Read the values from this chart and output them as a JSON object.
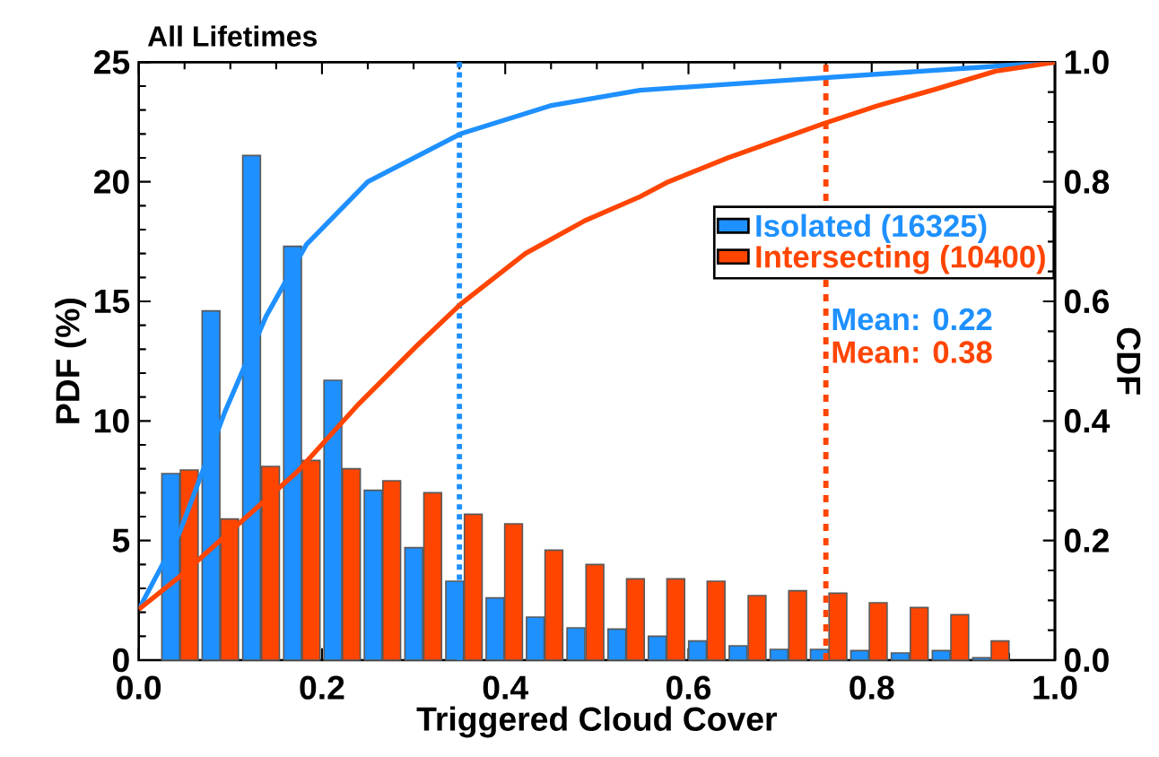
{
  "chart_data": {
    "type": "histogram",
    "title": "All Lifetimes",
    "xlabel": "Triggered Cloud Cover",
    "ylabel": "PDF (%)",
    "y2label": "CDF",
    "bins": [
      0.023,
      0.067,
      0.111,
      0.156,
      0.2,
      0.244,
      0.288,
      0.333,
      0.377,
      0.421,
      0.465,
      0.51,
      0.554,
      0.598,
      0.642,
      0.687,
      0.731,
      0.775,
      0.819,
      0.864,
      0.908,
      0.952
    ],
    "series": [
      {
        "name": "Isolated (16325)",
        "color": "#1e90ff",
        "values": [
          7.8,
          14.6,
          21.1,
          17.3,
          11.7,
          7.1,
          4.7,
          3.3,
          2.6,
          1.8,
          1.35,
          1.3,
          1.0,
          0.8,
          0.6,
          0.45,
          0.45,
          0.4,
          0.3,
          0.4,
          0.1
        ]
      },
      {
        "name": "Intersecting (10400)",
        "color": "#ff4500",
        "values": [
          7.95,
          5.9,
          8.1,
          8.35,
          8.0,
          7.5,
          7.0,
          6.1,
          5.7,
          4.6,
          4.0,
          3.4,
          3.4,
          3.3,
          2.7,
          2.9,
          2.8,
          2.4,
          2.2,
          1.9,
          0.8
        ]
      },
      {
        "type": "line",
        "axis": "y2",
        "color": "#1e90ff",
        "x": [
          0.0,
          0.045,
          0.094,
          0.139,
          0.183,
          0.25,
          0.351,
          0.449,
          0.547,
          0.709,
          0.904,
          1.0
        ],
        "values": [
          0.085,
          0.215,
          0.415,
          0.575,
          0.695,
          0.8,
          0.88,
          0.927,
          0.953,
          0.97,
          0.99,
          1.0
        ]
      },
      {
        "type": "line",
        "axis": "y2",
        "color": "#ff4500",
        "x": [
          0.0,
          0.045,
          0.107,
          0.173,
          0.238,
          0.303,
          0.351,
          0.422,
          0.487,
          0.547,
          0.578,
          0.643,
          0.747,
          0.806,
          0.87,
          0.935,
          1.0
        ],
        "values": [
          0.085,
          0.14,
          0.225,
          0.315,
          0.425,
          0.525,
          0.595,
          0.68,
          0.735,
          0.775,
          0.8,
          0.84,
          0.897,
          0.927,
          0.955,
          0.985,
          1.0
        ]
      }
    ],
    "ref_lines": [
      {
        "axis": "x",
        "value": 0.35,
        "color": "#1e90ff",
        "line_style": "dotted"
      },
      {
        "axis": "x",
        "value": 0.75,
        "color": "#ff4500",
        "line_style": "dashed"
      }
    ],
    "annotations": [
      "Mean: 0.22",
      "Mean: 0.38"
    ],
    "xlim": [
      0,
      1
    ],
    "ylim": [
      0,
      25
    ],
    "y2lim": [
      0,
      1
    ],
    "xticks": [
      {
        "value": 0,
        "label": "0.0"
      },
      {
        "value": 0.2,
        "label": "0.2"
      },
      {
        "value": 0.4,
        "label": "0.4"
      },
      {
        "value": 0.6,
        "label": "0.6"
      },
      {
        "value": 0.8,
        "label": "0.8"
      },
      {
        "value": 1,
        "label": "1.0"
      }
    ],
    "yticks": [
      0,
      5,
      10,
      15,
      20,
      25
    ],
    "y2ticks": [
      {
        "value": 0,
        "label": "0.0"
      },
      {
        "value": 0.2,
        "label": "0.2"
      },
      {
        "value": 0.4,
        "label": "0.4"
      },
      {
        "value": 0.6,
        "label": "0.6"
      },
      {
        "value": 0.8,
        "label": "0.8"
      },
      {
        "value": 1,
        "label": "1.0"
      }
    ],
    "legend": "right",
    "grid": false,
    "marker": "none"
  }
}
